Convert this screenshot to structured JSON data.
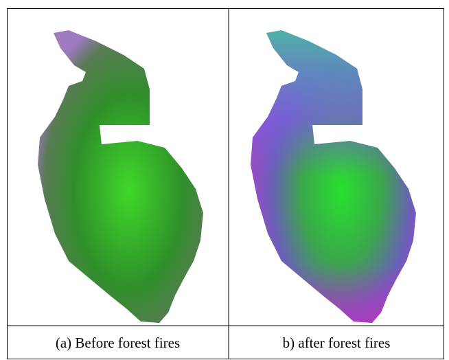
{
  "panels": [
    {
      "caption": "(a) Before forest fires"
    },
    {
      "caption": "b) after forest fires"
    }
  ]
}
